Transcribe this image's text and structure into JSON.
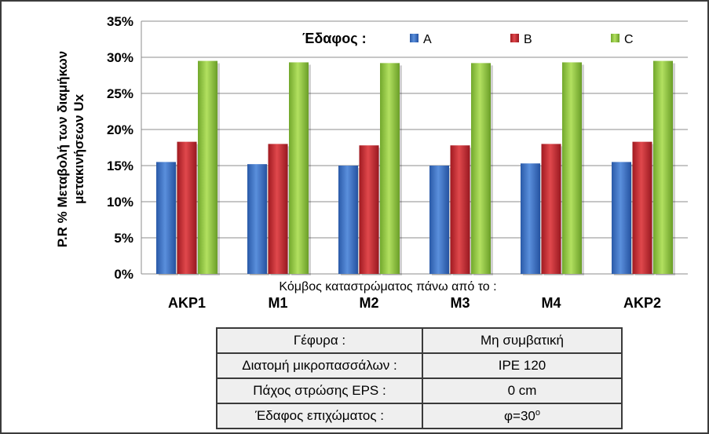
{
  "chart_data": {
    "type": "bar",
    "title": "",
    "ylabel_line1": "P.R % Μεταβολή των διαμήκων",
    "ylabel_line2": "μετακινήσεων Ux",
    "xlabel": "Κόμβος καταστρώματος πάνω από το :",
    "categories": [
      "ΑΚΡ1",
      "Μ1",
      "Μ2",
      "Μ3",
      "Μ4",
      "ΑΚΡ2"
    ],
    "series": [
      {
        "name": "A",
        "color": "#3a6fc4",
        "values": [
          15.5,
          15.2,
          15.0,
          15.0,
          15.3,
          15.5
        ]
      },
      {
        "name": "B",
        "color": "#c0282d",
        "values": [
          18.3,
          18.0,
          17.8,
          17.8,
          18.0,
          18.3
        ]
      },
      {
        "name": "C",
        "color": "#8dc63f",
        "values": [
          29.5,
          29.3,
          29.2,
          29.2,
          29.3,
          29.5
        ]
      }
    ],
    "ylim": [
      0,
      35
    ],
    "yticks": [
      0,
      5,
      10,
      15,
      20,
      25,
      30,
      35
    ],
    "ytick_suffix": "%",
    "grid": true,
    "legend_title": "Έδαφος :",
    "legend_position": "top"
  },
  "info_table": {
    "rows": [
      {
        "label": "Γέφυρα :",
        "value": "Μη συμβατική"
      },
      {
        "label": "Διατομή μικροπασσάλων :",
        "value": "IPE 120"
      },
      {
        "label": "Πάχος στρώσης EPS :",
        "value": "0 cm"
      },
      {
        "label": "Έδαφος επιχώματος :",
        "value": "φ=30",
        "value_sup": "o"
      }
    ]
  }
}
